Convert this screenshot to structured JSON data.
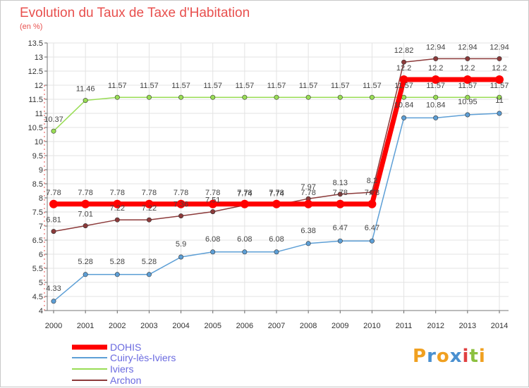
{
  "chart_data": {
    "type": "line",
    "title": "Evolution du Taux de Taxe d'Habitation",
    "unit": "(en %)",
    "x": [
      "2000",
      "2001",
      "2002",
      "2003",
      "2004",
      "2005",
      "2006",
      "2007",
      "2008",
      "2009",
      "2010",
      "2011",
      "2012",
      "2013",
      "2014"
    ],
    "ylim": [
      4,
      13.5
    ],
    "yticks": [
      "4",
      "4.5",
      "5",
      "5.5",
      "6",
      "6.5",
      "7",
      "7.5",
      "8",
      "8.5",
      "9",
      "9.5",
      "10",
      "10.5",
      "11",
      "11.5",
      "12",
      "12.5",
      "13",
      "13.5"
    ],
    "grid": true,
    "legend": "bottom-left",
    "series": [
      {
        "name": "DOHIS",
        "color": "#ff0000",
        "values": [
          7.78,
          7.78,
          7.78,
          7.78,
          7.78,
          7.78,
          7.78,
          7.78,
          7.78,
          7.78,
          7.78,
          12.2,
          12.2,
          12.2,
          12.2
        ],
        "labels": [
          "7.78",
          "7.78",
          "7.78",
          "7.78",
          "7.78",
          "7.78",
          "7.78",
          "7.78",
          "7.78",
          "7.78",
          "7.78",
          "12.2",
          "12.2",
          "12.2",
          "12.2"
        ]
      },
      {
        "name": "Cuiry-lès-Iviers",
        "color": "#5d9fd6",
        "values": [
          4.33,
          5.28,
          5.28,
          5.28,
          5.9,
          6.08,
          6.08,
          6.08,
          6.38,
          6.47,
          6.47,
          10.84,
          10.84,
          10.95,
          11
        ],
        "labels": [
          "4.33",
          "5.28",
          "5.28",
          "5.28",
          "5.9",
          "6.08",
          "6.08",
          "6.08",
          "6.38",
          "6.47",
          "6.47",
          "10.84",
          "10.84",
          "10.95",
          "11"
        ]
      },
      {
        "name": "Iviers",
        "color": "#99dd55",
        "values": [
          10.37,
          11.46,
          11.57,
          11.57,
          11.57,
          11.57,
          11.57,
          11.57,
          11.57,
          11.57,
          11.57,
          11.57,
          11.57,
          11.57,
          11.57
        ],
        "labels": [
          "10.37",
          "11.46",
          "11.57",
          "11.57",
          "11.57",
          "11.57",
          "11.57",
          "11.57",
          "11.57",
          "11.57",
          "11.57",
          "11.57",
          "11.57",
          "11.57",
          "11.57"
        ]
      },
      {
        "name": "Archon",
        "color": "#8c3a3a",
        "values": [
          6.81,
          7.01,
          7.22,
          7.22,
          7.36,
          7.51,
          7.74,
          7.74,
          7.97,
          8.13,
          8.2,
          12.82,
          12.94,
          12.94,
          12.94
        ],
        "labels": [
          "6.81",
          "7.01",
          "7.22",
          "7.22",
          "7.36",
          "7.51",
          "7.74",
          "7.74",
          "7.97",
          "8.13",
          "8.2",
          "12.82",
          "12.94",
          "12.94",
          "12.94"
        ]
      }
    ]
  },
  "logo": {
    "letters": [
      "P",
      "r",
      "o",
      "x",
      "i",
      "t",
      "i"
    ],
    "colors": [
      "#f0a020",
      "#4a90d0",
      "#f0a020",
      "#4a90d0",
      "#e04040",
      "#8cc040",
      "#f0a020"
    ]
  }
}
